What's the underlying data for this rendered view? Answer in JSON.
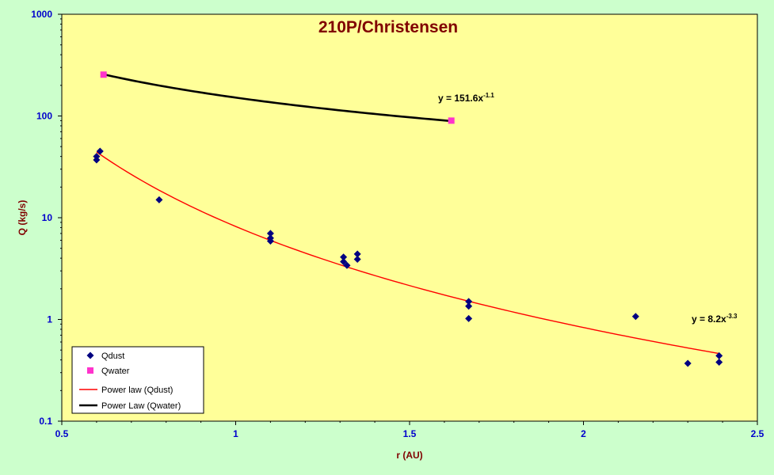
{
  "chart_data": {
    "type": "scatter",
    "title": "210P/Christensen",
    "xlabel": "r (AU)",
    "ylabel": "Q (kg/s)",
    "xlim": [
      0.5,
      2.5
    ],
    "ylim": [
      0.1,
      1000
    ],
    "yscale": "log",
    "x_ticks": [
      "0.5",
      "1",
      "1.5",
      "2",
      "2.5"
    ],
    "y_ticks": [
      "0.1",
      "1",
      "10",
      "100",
      "1000"
    ],
    "grid": false,
    "legend_position": "bottom-left",
    "colors": {
      "background": "#ccffcc",
      "plot_area": "#ffff99",
      "qdust": "#000080",
      "qwater": "#ff33cc",
      "fit_dust": "#ff0000",
      "fit_water": "#000000",
      "title": "#800000",
      "axis_label": "#800000",
      "tick_label": "#0000cc"
    },
    "series": [
      {
        "name": "Qdust",
        "marker": "diamond",
        "x": [
          0.6,
          0.6,
          0.61,
          0.78,
          1.1,
          1.1,
          1.1,
          1.31,
          1.31,
          1.32,
          1.35,
          1.35,
          1.67,
          1.67,
          1.67,
          2.15,
          2.3,
          2.39,
          2.39
        ],
        "y": [
          37,
          40,
          45,
          15,
          7.0,
          6.3,
          5.9,
          4.1,
          3.7,
          3.4,
          4.4,
          3.9,
          1.5,
          1.35,
          1.02,
          1.07,
          0.37,
          0.44,
          0.38
        ]
      },
      {
        "name": "Qwater",
        "marker": "square",
        "x": [
          0.62,
          1.62
        ],
        "y": [
          255,
          90
        ]
      },
      {
        "name": "Power law (Qdust)",
        "type": "line",
        "coefficient": 8.2,
        "exponent": -3.3,
        "x_range": [
          0.6,
          2.39
        ]
      },
      {
        "name": "Power Law (Qwater)",
        "type": "line",
        "coefficient": 151.6,
        "exponent": -1.1,
        "x_range": [
          0.62,
          1.62
        ]
      }
    ],
    "annotations": [
      {
        "id": "water",
        "text": "y = 151.6x",
        "sup": "-1.1",
        "near": "upper fit line"
      },
      {
        "id": "dust",
        "text": "y = 8.2x",
        "sup": "-3.3",
        "near": "right end of lower fit line"
      }
    ]
  }
}
